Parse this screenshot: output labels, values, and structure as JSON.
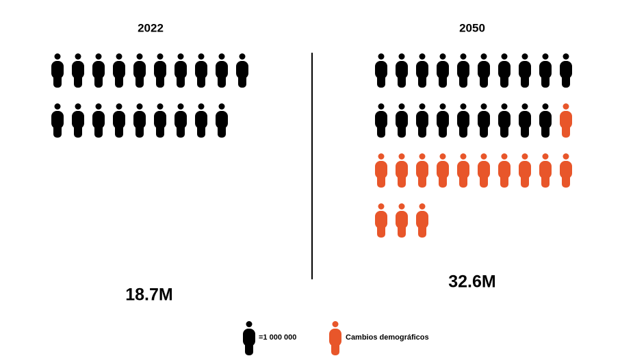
{
  "chart_data": {
    "type": "pictograph",
    "categories": [
      "2022",
      "2050"
    ],
    "series": [
      {
        "name": "=1 000 000",
        "color": "#000000",
        "values": [
          19,
          19
        ]
      },
      {
        "name": "Cambios demográficos",
        "color": "#e8562a",
        "values": [
          0,
          14
        ]
      }
    ],
    "totals": [
      18.7,
      32.6
    ],
    "total_labels": [
      "18.7M",
      "32.6M"
    ]
  }
}
